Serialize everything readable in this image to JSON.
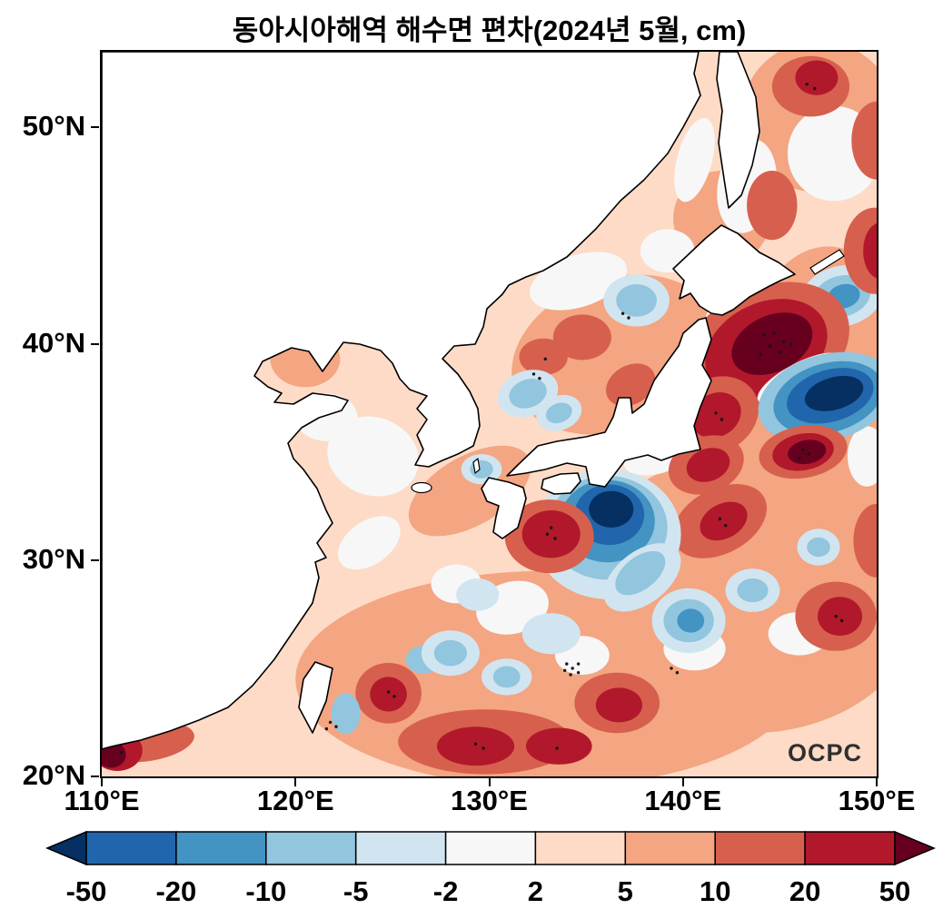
{
  "title": "동아시아해역 해수면 편차(2024년 5월, cm)",
  "watermark": "OCPC",
  "chart_data": {
    "type": "heatmap",
    "title": "동아시아해역 해수면 편차(2024년 5월, cm)",
    "period": "2024년 5월",
    "units": "cm",
    "lon_range": [
      110,
      150
    ],
    "lat_range": [
      20,
      53.5
    ],
    "lon_ticks": [
      {
        "value": 110,
        "label": "110°E"
      },
      {
        "value": 120,
        "label": "120°E"
      },
      {
        "value": 130,
        "label": "130°E"
      },
      {
        "value": 140,
        "label": "140°E"
      },
      {
        "value": 150,
        "label": "150°E"
      }
    ],
    "lat_ticks": [
      {
        "value": 50,
        "label": "50°N"
      },
      {
        "value": 40,
        "label": "40°N"
      },
      {
        "value": 30,
        "label": "30°N"
      },
      {
        "value": 20,
        "label": "20°N"
      }
    ],
    "colorbar": {
      "levels": [
        -50,
        -20,
        -10,
        -5,
        -2,
        2,
        5,
        10,
        20,
        50
      ],
      "colors": [
        "#053061",
        "#2166ac",
        "#4393c3",
        "#92c5de",
        "#d1e5f0",
        "#f7f7f7",
        "#fddbc7",
        "#f4a582",
        "#d6604d",
        "#b2182b",
        "#67001f"
      ],
      "extend": "both"
    },
    "ocean_base_color_index": 6,
    "anomaly_blobs": [
      [
        133,
        24.5,
        13,
        5,
        0,
        7
      ],
      [
        143.5,
        28.5,
        9,
        6.5,
        0,
        7
      ],
      [
        147.5,
        36.5,
        5,
        8,
        0,
        7
      ],
      [
        136.5,
        39.5,
        5.5,
        3.5,
        -20,
        7
      ],
      [
        147,
        50.5,
        4,
        3.5,
        0,
        7
      ],
      [
        120.5,
        39.3,
        1.8,
        1.3,
        0,
        7
      ],
      [
        129,
        33.2,
        3.5,
        1.6,
        -30,
        7
      ],
      [
        124,
        24.5,
        3.5,
        2.5,
        0,
        7
      ],
      [
        142,
        45.8,
        2.5,
        2.2,
        0,
        7
      ],
      [
        124,
        34.8,
        2.4,
        1.8,
        20,
        5
      ],
      [
        121.6,
        36.6,
        1.6,
        1.1,
        0,
        5
      ],
      [
        147.8,
        48.8,
        2.4,
        2.2,
        0,
        5
      ],
      [
        143.3,
        47.3,
        1.5,
        2.2,
        10,
        5
      ],
      [
        140.6,
        48.5,
        0.9,
        2,
        15,
        5
      ],
      [
        131.2,
        27.8,
        1.9,
        1.2,
        -15,
        5
      ],
      [
        134.8,
        25.6,
        1.4,
        0.9,
        0,
        5
      ],
      [
        140.6,
        25.9,
        1.6,
        1,
        0,
        5
      ],
      [
        146,
        26.6,
        1.6,
        1,
        0,
        5
      ],
      [
        138.7,
        34.8,
        1.8,
        0.8,
        -15,
        5
      ],
      [
        134.6,
        42.9,
        2.6,
        1.2,
        -18,
        5
      ],
      [
        139.2,
        44.3,
        1.4,
        1,
        0,
        5
      ],
      [
        128.3,
        28.9,
        1.3,
        0.9,
        0,
        5
      ],
      [
        123.8,
        30.8,
        1.8,
        1,
        -35,
        5
      ],
      [
        149.5,
        34.8,
        1,
        1.4,
        0,
        5
      ],
      [
        142.3,
        40.8,
        1.2,
        1.3,
        0,
        5
      ],
      [
        137.6,
        42,
        1.7,
        1.2,
        0,
        4
      ],
      [
        137.6,
        42,
        1.05,
        0.75,
        0,
        3
      ],
      [
        148.2,
        42.2,
        2.2,
        1.4,
        -15,
        4
      ],
      [
        148.2,
        42.2,
        1.5,
        0.95,
        -15,
        3
      ],
      [
        148.3,
        42.2,
        0.85,
        0.55,
        -15,
        2
      ],
      [
        134.8,
        40.3,
        1.5,
        1.05,
        0,
        8
      ],
      [
        132.8,
        39.4,
        1.25,
        0.85,
        0,
        8
      ],
      [
        137.3,
        38.1,
        1.35,
        0.9,
        -30,
        8
      ],
      [
        132,
        37.7,
        1.6,
        1.05,
        -20,
        4
      ],
      [
        132,
        37.7,
        1,
        0.65,
        -20,
        3
      ],
      [
        133.6,
        36.8,
        1.2,
        0.8,
        -20,
        4
      ],
      [
        133.6,
        36.8,
        0.7,
        0.45,
        -20,
        3
      ],
      [
        129.6,
        34.2,
        1.05,
        0.7,
        0,
        4
      ],
      [
        129.6,
        34.2,
        0.6,
        0.42,
        0,
        3
      ],
      [
        146.6,
        51.9,
        2,
        1.4,
        0,
        8
      ],
      [
        146.9,
        52.3,
        1.1,
        0.8,
        0,
        9
      ],
      [
        150,
        49.4,
        1.3,
        1.8,
        0,
        8
      ],
      [
        149.9,
        44.3,
        1.6,
        2,
        0,
        8
      ],
      [
        150.2,
        44.3,
        0.9,
        1.3,
        0,
        9
      ],
      [
        144.6,
        46.4,
        1.3,
        1.6,
        0,
        8
      ],
      [
        144.3,
        39.8,
        4.5,
        2.8,
        -25,
        8
      ],
      [
        144.3,
        39.8,
        3.3,
        2.1,
        -25,
        9
      ],
      [
        144.6,
        40,
        2.2,
        1.3,
        -25,
        10
      ],
      [
        141.7,
        36.7,
        2.3,
        1.7,
        -30,
        8
      ],
      [
        141.7,
        36.7,
        1.35,
        1,
        -30,
        9
      ],
      [
        146,
        38.4,
        2.4,
        0.7,
        -28,
        5
      ],
      [
        147.4,
        37.5,
        3.6,
        2,
        -16,
        3
      ],
      [
        147.5,
        37.5,
        2.9,
        1.6,
        -16,
        2
      ],
      [
        147.6,
        37.6,
        2.3,
        1.2,
        -16,
        1
      ],
      [
        147.8,
        37.7,
        1.55,
        0.75,
        -16,
        0
      ],
      [
        146.2,
        35,
        2.3,
        1.2,
        -10,
        8
      ],
      [
        146.2,
        35,
        1.6,
        0.85,
        -10,
        9
      ],
      [
        146.4,
        35,
        1,
        0.55,
        -10,
        10
      ],
      [
        141.2,
        34.4,
        2,
        1.3,
        -20,
        8
      ],
      [
        141.3,
        34.4,
        1.15,
        0.75,
        -20,
        9
      ],
      [
        141.9,
        31.8,
        2.6,
        1.5,
        -28,
        8
      ],
      [
        142.1,
        31.8,
        1.3,
        0.8,
        -28,
        9
      ],
      [
        140.3,
        27.2,
        1.9,
        1.5,
        0,
        4
      ],
      [
        140.3,
        27.2,
        1.3,
        1,
        0,
        3
      ],
      [
        140.4,
        27.2,
        0.7,
        0.55,
        0,
        2
      ],
      [
        143.6,
        28.6,
        1.4,
        1,
        0,
        4
      ],
      [
        143.6,
        28.6,
        0.8,
        0.55,
        0,
        3
      ],
      [
        147,
        30.6,
        1.1,
        0.85,
        0,
        4
      ],
      [
        147,
        30.6,
        0.6,
        0.45,
        0,
        3
      ],
      [
        147.9,
        27.4,
        2.1,
        1.6,
        0,
        8
      ],
      [
        148.1,
        27.4,
        1.15,
        0.9,
        0,
        9
      ],
      [
        150,
        30.9,
        1.2,
        1.7,
        0,
        8
      ],
      [
        136.1,
        31.2,
        3.8,
        3,
        0,
        4
      ],
      [
        136.1,
        31.5,
        3.1,
        2.4,
        0,
        3
      ],
      [
        136.1,
        31.8,
        2.45,
        1.9,
        0,
        2
      ],
      [
        136.2,
        32.1,
        1.8,
        1.4,
        0,
        1
      ],
      [
        136.3,
        32.35,
        1.15,
        0.85,
        0,
        0
      ],
      [
        137.9,
        29.2,
        2.3,
        1.2,
        -38,
        4
      ],
      [
        137.8,
        29.4,
        1.5,
        0.75,
        -38,
        3
      ],
      [
        133.1,
        31.1,
        2.3,
        1.7,
        0,
        8
      ],
      [
        133.2,
        31.2,
        1.5,
        1.1,
        0,
        9
      ],
      [
        124.8,
        23.85,
        1.7,
        1.4,
        0,
        8
      ],
      [
        124.8,
        23.8,
        0.95,
        0.8,
        0,
        9
      ],
      [
        129.8,
        21.6,
        4.5,
        1.5,
        0,
        8
      ],
      [
        129.3,
        21.4,
        2,
        0.9,
        0,
        9
      ],
      [
        133.6,
        21.4,
        1.7,
        0.85,
        0,
        9
      ],
      [
        136.6,
        23.4,
        2.2,
        1.4,
        0,
        8
      ],
      [
        136.7,
        23.3,
        1.2,
        0.8,
        0,
        9
      ],
      [
        126.6,
        25.4,
        0.9,
        0.65,
        0,
        3
      ],
      [
        122.6,
        22.9,
        0.75,
        0.95,
        0,
        3
      ],
      [
        130.9,
        24.6,
        1.3,
        0.85,
        0,
        4
      ],
      [
        130.9,
        24.6,
        0.7,
        0.5,
        0,
        3
      ],
      [
        133.2,
        26.6,
        1.5,
        0.95,
        0,
        4
      ],
      [
        129.4,
        28.4,
        1.1,
        0.75,
        0,
        4
      ],
      [
        128,
        25.7,
        1.5,
        1.05,
        0,
        4
      ],
      [
        128,
        25.7,
        0.85,
        0.6,
        0,
        3
      ],
      [
        112.3,
        21.6,
        2.5,
        0.9,
        -8,
        8
      ],
      [
        110.8,
        21.2,
        1.3,
        0.95,
        0,
        9
      ],
      [
        110.5,
        21,
        0.75,
        0.6,
        0,
        10
      ]
    ],
    "stipple_points": [
      [
        144.2,
        40.4
      ],
      [
        144.7,
        40.5
      ],
      [
        145.2,
        40.1
      ],
      [
        144.5,
        39.9
      ],
      [
        145,
        39.6
      ],
      [
        145.6,
        40
      ],
      [
        144,
        39.5
      ],
      [
        146.2,
        35.1
      ],
      [
        146.5,
        34.9
      ],
      [
        146,
        34.7
      ],
      [
        141.7,
        36.8
      ],
      [
        142,
        36.5
      ],
      [
        133,
        31.2
      ],
      [
        133.4,
        31
      ],
      [
        133.2,
        31.5
      ],
      [
        141.9,
        31.9
      ],
      [
        142.2,
        31.6
      ],
      [
        134,
        25.2
      ],
      [
        134.3,
        25
      ],
      [
        134.6,
        25.2
      ],
      [
        134.2,
        24.7
      ],
      [
        134.6,
        24.8
      ],
      [
        133.9,
        24.9
      ],
      [
        139.4,
        25
      ],
      [
        139.7,
        24.8
      ],
      [
        121.8,
        22.5
      ],
      [
        122.1,
        22.3
      ],
      [
        121.6,
        22.2
      ],
      [
        124.8,
        23.9
      ],
      [
        125.1,
        23.7
      ],
      [
        132.3,
        38.6
      ],
      [
        132.6,
        38.4
      ],
      [
        132.9,
        39.3
      ],
      [
        136.9,
        41.4
      ],
      [
        137.2,
        41.2
      ],
      [
        146.4,
        52
      ],
      [
        146.8,
        51.8
      ],
      [
        129.3,
        21.5
      ],
      [
        129.7,
        21.3
      ],
      [
        133.5,
        21.3
      ],
      [
        111,
        21.1
      ],
      [
        147.9,
        27.4
      ],
      [
        148.2,
        27.2
      ]
    ]
  }
}
